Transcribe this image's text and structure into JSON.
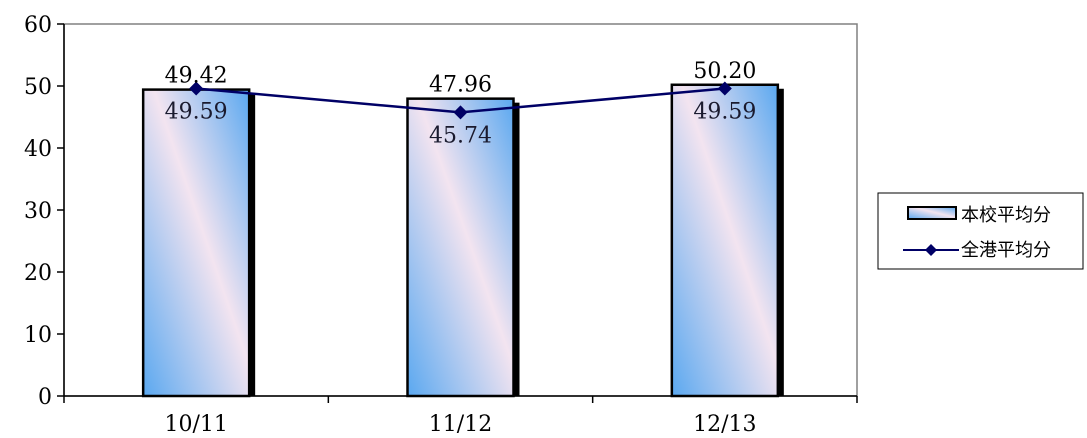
{
  "chart_data": {
    "type": "bar",
    "categories": [
      "10/11",
      "11/12",
      "12/13"
    ],
    "series": [
      {
        "name": "本校平均分",
        "type": "bar",
        "values": [
          49.42,
          47.96,
          50.2
        ],
        "labels": [
          "49.42",
          "47.96",
          "50.20"
        ]
      },
      {
        "name": "全港平均分",
        "type": "line",
        "values": [
          49.59,
          45.74,
          49.59
        ],
        "labels": [
          "49.59",
          "45.74",
          "49.59"
        ],
        "marker": "diamond"
      }
    ],
    "y_ticks": [
      0,
      10,
      20,
      30,
      40,
      50,
      60
    ],
    "ylim": [
      0,
      60
    ],
    "grid": false,
    "legend": "right",
    "title": "",
    "xlabel": "",
    "ylabel": "",
    "colors": {
      "bar_gradient_light": "#f3e4f0",
      "bar_gradient_blue": "#5aa8f0",
      "bar_outline": "#000000",
      "bar_shadow": "#000000",
      "line": "#000066",
      "marker": "#000066",
      "axis": "#000000",
      "plot_border": "#808080"
    }
  }
}
